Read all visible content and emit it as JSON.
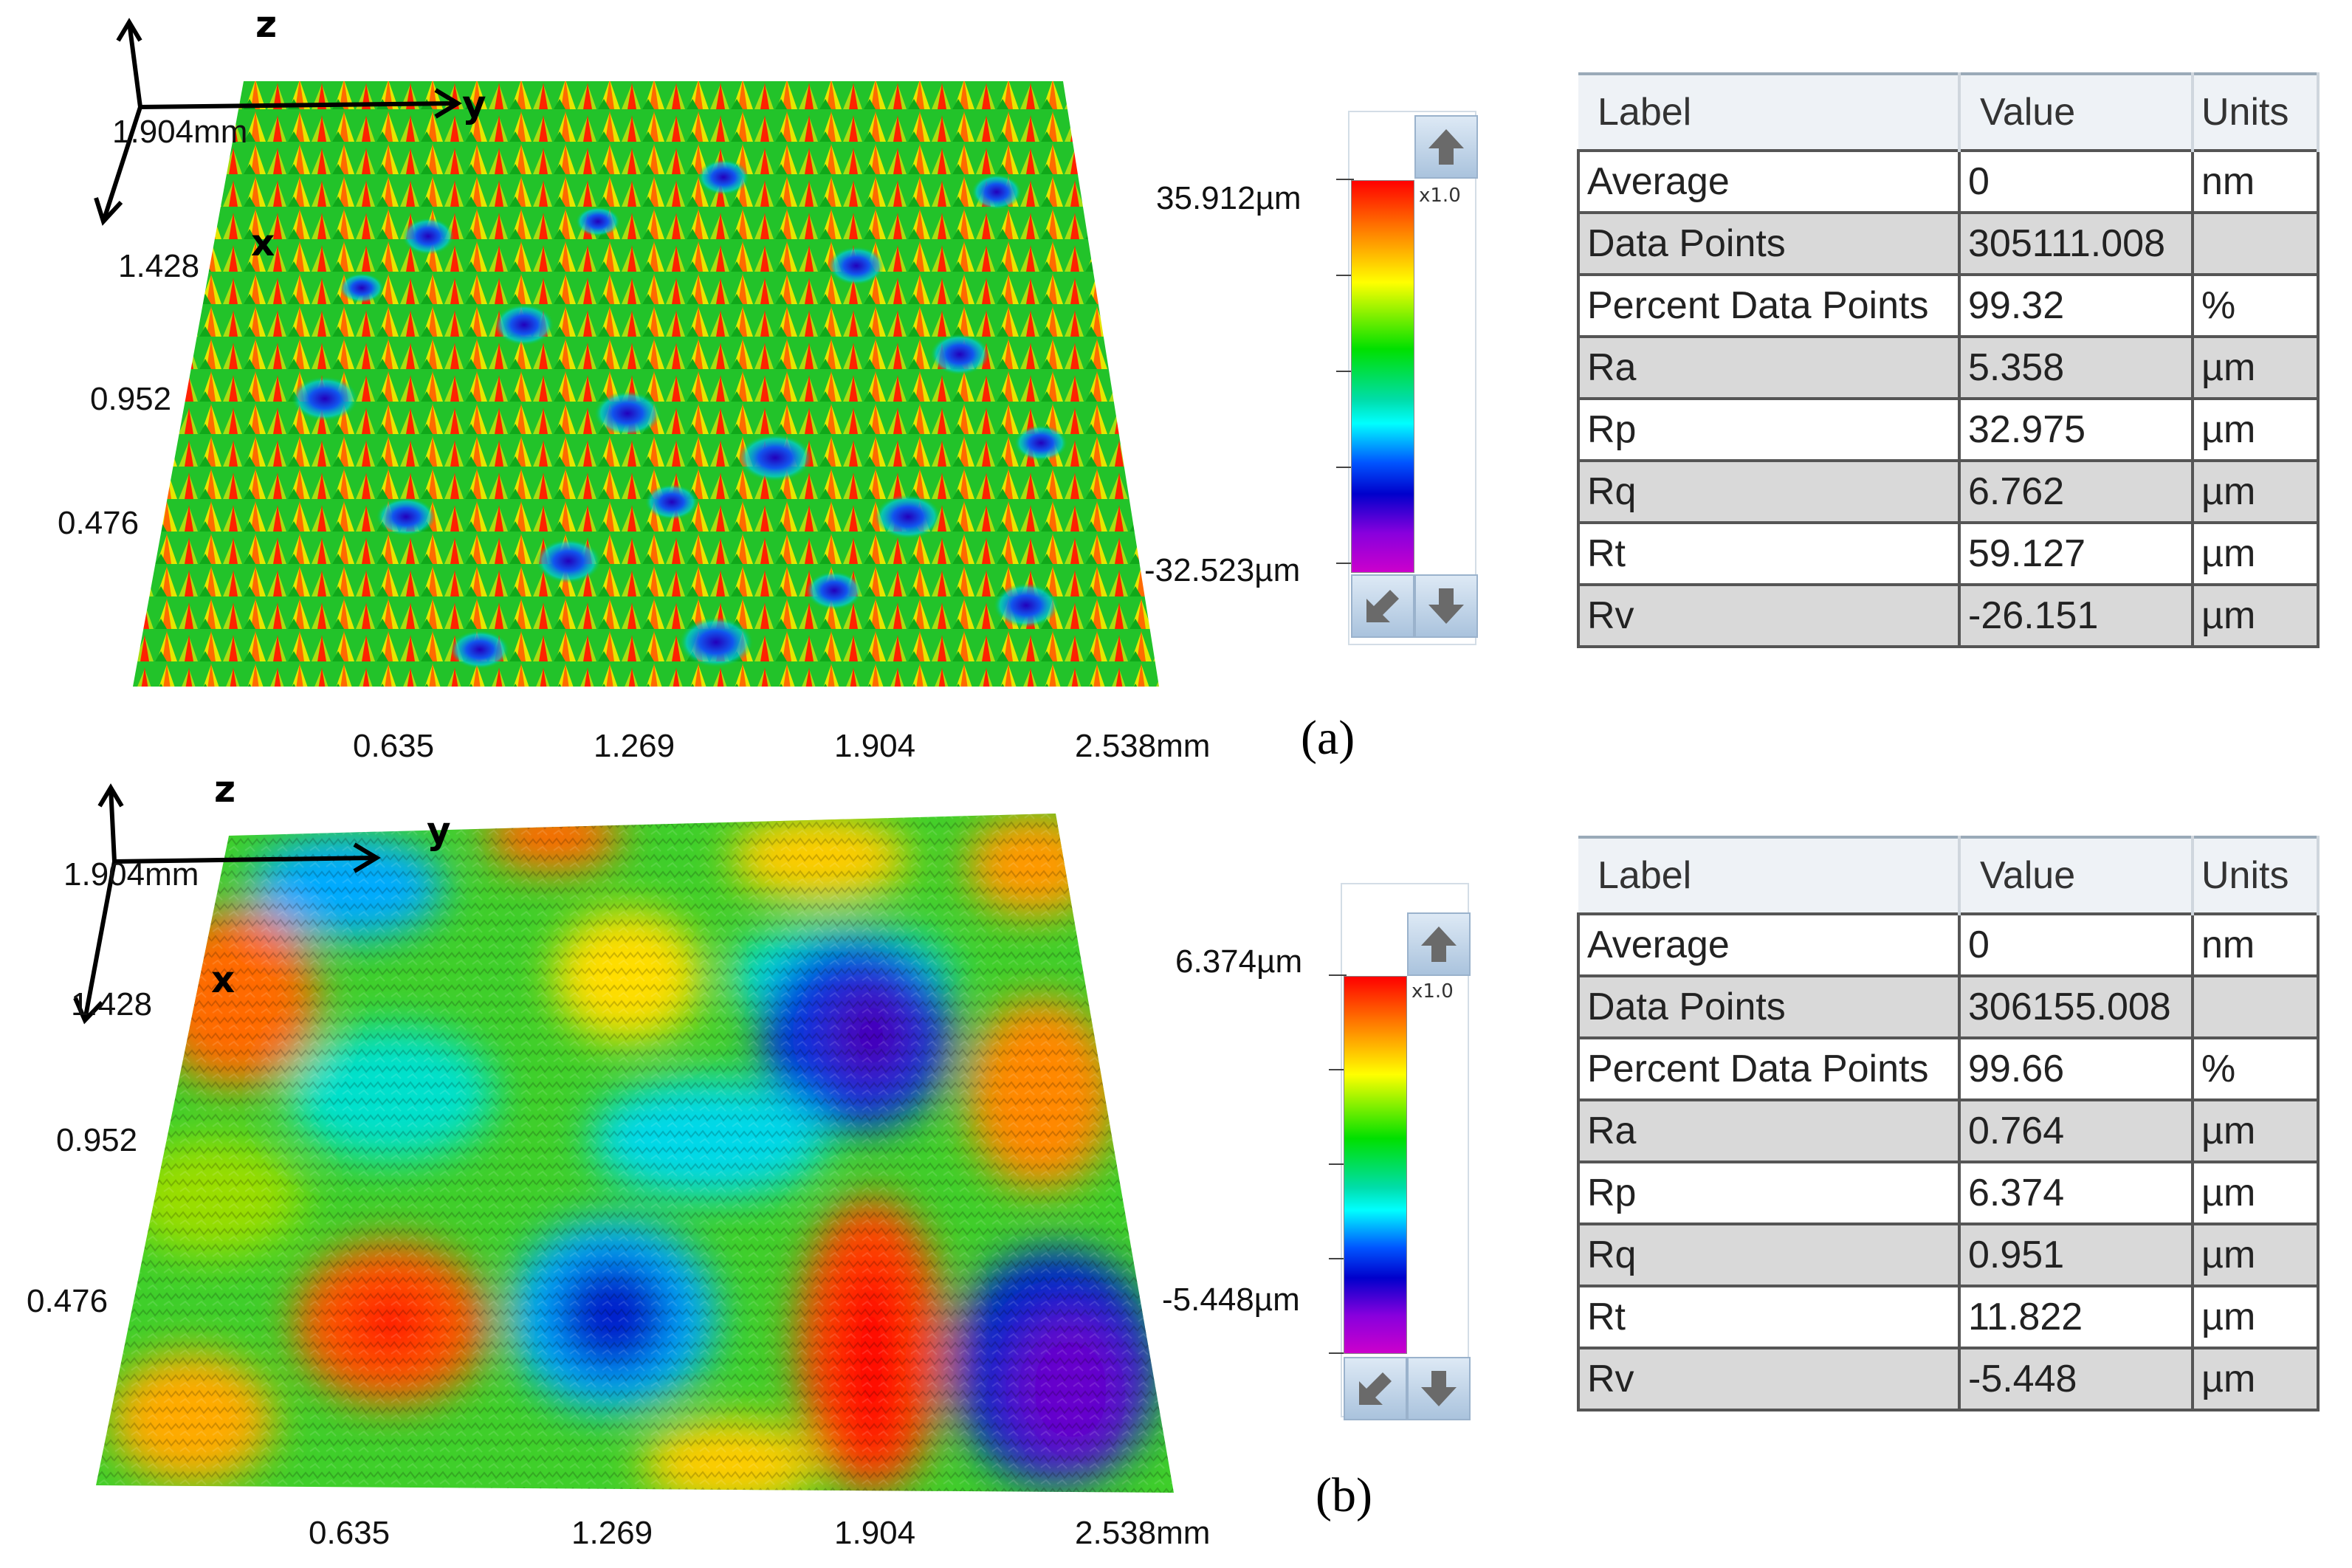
{
  "panels": [
    {
      "tag": "(a)",
      "axes": {
        "z": "z",
        "y": "y",
        "x": "x"
      },
      "y_ticks": [
        "1.904mm",
        "1.428",
        "0.952",
        "0.476"
      ],
      "x_ticks": [
        "0.635",
        "1.269",
        "1.904",
        "2.538mm"
      ],
      "scale": {
        "max": "35.912µm",
        "min": "-32.523µm",
        "zoom": "x1.0"
      },
      "table": {
        "headers": [
          "Label",
          "Value",
          "Units"
        ],
        "rows": [
          {
            "label": "Average",
            "value": "0",
            "units": "nm"
          },
          {
            "label": "Data Points",
            "value": "305111.008",
            "units": ""
          },
          {
            "label": "Percent Data Points",
            "value": "99.32",
            "units": "%"
          },
          {
            "label": "Ra",
            "value": "5.358",
            "units": "µm"
          },
          {
            "label": "Rp",
            "value": "32.975",
            "units": "µm"
          },
          {
            "label": "Rq",
            "value": "6.762",
            "units": "µm"
          },
          {
            "label": "Rt",
            "value": "59.127",
            "units": "µm"
          },
          {
            "label": "Rv",
            "value": "-26.151",
            "units": "µm"
          }
        ]
      }
    },
    {
      "tag": "(b)",
      "axes": {
        "z": "z",
        "y": "y",
        "x": "x"
      },
      "y_ticks": [
        "1.904mm",
        "1.428",
        "0.952",
        "0.476"
      ],
      "x_ticks": [
        "0.635",
        "1.269",
        "1.904",
        "2.538mm"
      ],
      "scale": {
        "max": "6.374µm",
        "min": "-5.448µm",
        "zoom": "x1.0"
      },
      "table": {
        "headers": [
          "Label",
          "Value",
          "Units"
        ],
        "rows": [
          {
            "label": "Average",
            "value": "0",
            "units": "nm"
          },
          {
            "label": "Data Points",
            "value": "306155.008",
            "units": ""
          },
          {
            "label": "Percent Data Points",
            "value": "99.66",
            "units": "%"
          },
          {
            "label": "Ra",
            "value": "0.764",
            "units": "µm"
          },
          {
            "label": "Rp",
            "value": "6.374",
            "units": "µm"
          },
          {
            "label": "Rq",
            "value": "0.951",
            "units": "µm"
          },
          {
            "label": "Rt",
            "value": "11.822",
            "units": "µm"
          },
          {
            "label": "Rv",
            "value": "-5.448",
            "units": "µm"
          }
        ]
      }
    }
  ]
}
